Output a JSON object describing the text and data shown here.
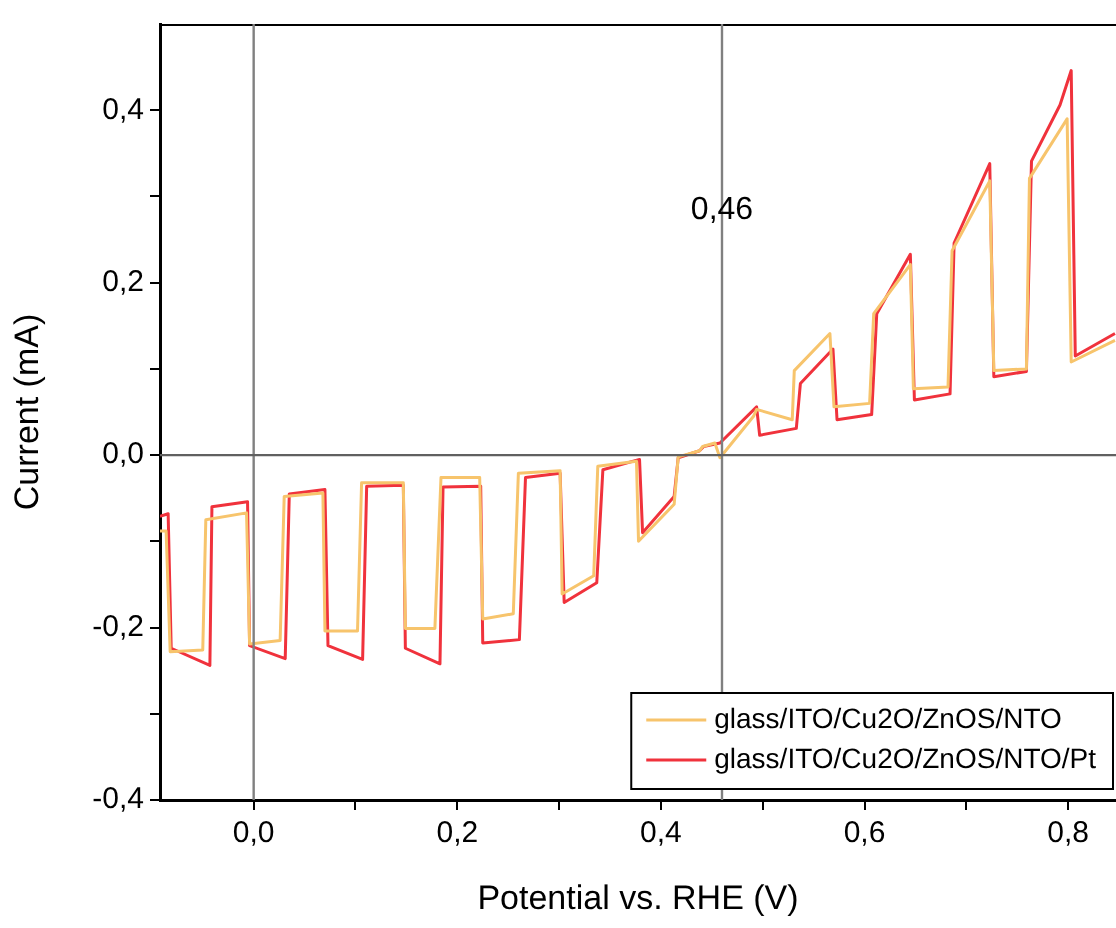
{
  "chart_data": {
    "type": "line",
    "xlabel": "Potential vs. RHE (V)",
    "ylabel": "Current (mA)",
    "xlim": [
      -0.092,
      0.847
    ],
    "ylim": [
      -0.4,
      0.5
    ],
    "xticks": [
      {
        "value": 0,
        "label": "0,0"
      },
      {
        "value": 0.1,
        "label": null
      },
      {
        "value": 0.2,
        "label": "0,2"
      },
      {
        "value": 0.3,
        "label": null
      },
      {
        "value": 0.4,
        "label": "0,4"
      },
      {
        "value": 0.5,
        "label": null
      },
      {
        "value": 0.6,
        "label": "0,6"
      },
      {
        "value": 0.7,
        "label": null
      },
      {
        "value": 0.8,
        "label": "0,8"
      }
    ],
    "yticks": [
      {
        "value": -0.4,
        "label": "-0,4"
      },
      {
        "value": -0.3,
        "label": null
      },
      {
        "value": -0.2,
        "label": "-0,2"
      },
      {
        "value": -0.1,
        "label": null
      },
      {
        "value": 0,
        "label": "0,0"
      },
      {
        "value": 0.1,
        "label": null
      },
      {
        "value": 0.2,
        "label": "0,2"
      },
      {
        "value": 0.3,
        "label": null
      },
      {
        "value": 0.4,
        "label": "0,4"
      }
    ],
    "grid": false,
    "legend": "bottom right",
    "marker": "none",
    "line_style": "solid",
    "ref_lines": [
      {
        "axis": "x",
        "value": 0,
        "color": "#808080"
      },
      {
        "axis": "x",
        "value": 0.46,
        "label": "0,46",
        "color": "#808080"
      },
      {
        "axis": "y",
        "value": 0,
        "color": "#606060"
      }
    ],
    "series": [
      {
        "name": "glass/ITO/Cu2O/ZnOS/NTO",
        "color": "#f7c46c",
        "x": [
          -0.092,
          -0.086,
          -0.082,
          -0.05,
          -0.047,
          -0.007,
          -0.004,
          0.026,
          0.03,
          0.068,
          0.07,
          0.102,
          0.106,
          0.147,
          0.149,
          0.178,
          0.184,
          0.222,
          0.225,
          0.255,
          0.26,
          0.301,
          0.303,
          0.334,
          0.338,
          0.376,
          0.378,
          0.413,
          0.417,
          0.438,
          0.441,
          0.453,
          0.458,
          0.491,
          0.494,
          0.529,
          0.531,
          0.566,
          0.57,
          0.605,
          0.609,
          0.645,
          0.648,
          0.682,
          0.686,
          0.723,
          0.727,
          0.759,
          0.762,
          0.799,
          0.803,
          0.846
        ],
        "values": [
          -0.088,
          -0.088,
          -0.228,
          -0.226,
          -0.075,
          -0.067,
          -0.219,
          -0.215,
          -0.048,
          -0.044,
          -0.204,
          -0.204,
          -0.032,
          -0.032,
          -0.201,
          -0.201,
          -0.026,
          -0.026,
          -0.19,
          -0.184,
          -0.021,
          -0.018,
          -0.161,
          -0.14,
          -0.013,
          -0.007,
          -0.1,
          -0.057,
          -0.002,
          0.005,
          0.01,
          0.014,
          -0.003,
          0.045,
          0.053,
          0.041,
          0.098,
          0.141,
          0.056,
          0.06,
          0.164,
          0.221,
          0.077,
          0.079,
          0.237,
          0.318,
          0.098,
          0.1,
          0.321,
          0.39,
          0.108,
          0.133
        ]
      },
      {
        "name": "glass/ITO/Cu2O/ZnOS/NTO/Pt",
        "color": "#f0323c",
        "x": [
          -0.092,
          -0.084,
          -0.081,
          -0.043,
          -0.041,
          -0.006,
          -0.004,
          0.031,
          0.035,
          0.07,
          0.073,
          0.107,
          0.111,
          0.147,
          0.149,
          0.183,
          0.186,
          0.223,
          0.225,
          0.261,
          0.267,
          0.301,
          0.305,
          0.337,
          0.343,
          0.379,
          0.382,
          0.413,
          0.417,
          0.438,
          0.442,
          0.458,
          0.494,
          0.497,
          0.533,
          0.537,
          0.569,
          0.573,
          0.607,
          0.612,
          0.645,
          0.649,
          0.684,
          0.688,
          0.723,
          0.727,
          0.759,
          0.764,
          0.792,
          0.803,
          0.807,
          0.846
        ],
        "values": [
          -0.071,
          -0.068,
          -0.224,
          -0.244,
          -0.06,
          -0.054,
          -0.221,
          -0.236,
          -0.045,
          -0.04,
          -0.221,
          -0.237,
          -0.036,
          -0.035,
          -0.224,
          -0.242,
          -0.037,
          -0.036,
          -0.218,
          -0.214,
          -0.026,
          -0.021,
          -0.171,
          -0.148,
          -0.017,
          -0.005,
          -0.09,
          -0.048,
          -0.003,
          0.005,
          0.01,
          0.014,
          0.056,
          0.023,
          0.031,
          0.083,
          0.123,
          0.041,
          0.047,
          0.164,
          0.233,
          0.064,
          0.071,
          0.246,
          0.338,
          0.091,
          0.097,
          0.341,
          0.406,
          0.446,
          0.115,
          0.141
        ]
      }
    ]
  }
}
